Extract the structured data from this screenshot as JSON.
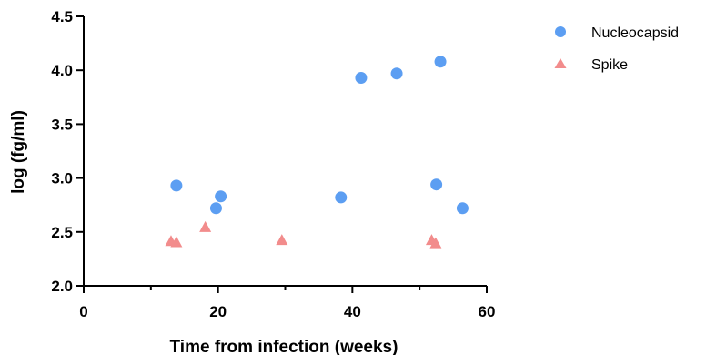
{
  "chart_data": {
    "type": "scatter",
    "title": "",
    "xlabel": "Time from infection (weeks)",
    "ylabel": "log (fg/ml)",
    "xlim": [
      0,
      60
    ],
    "ylim": [
      2.0,
      4.5
    ],
    "x_ticks": [
      0,
      20,
      40,
      60
    ],
    "x_minor_ticks": [
      10,
      30,
      50
    ],
    "y_ticks": [
      2.0,
      2.5,
      3.0,
      3.5,
      4.0,
      4.5
    ],
    "y_tick_labels": [
      "2.0",
      "2.5",
      "3.0",
      "3.5",
      "4.0",
      "4.5"
    ],
    "x_tick_labels": [
      "0",
      "20",
      "40",
      "60"
    ],
    "grid": false,
    "legend_position": "top-right",
    "series": [
      {
        "name": "Nucleocapsid",
        "marker": "circle",
        "color": "#5c9ef2",
        "points": [
          {
            "x": 13.8,
            "y": 2.93
          },
          {
            "x": 19.7,
            "y": 2.72
          },
          {
            "x": 20.4,
            "y": 2.83
          },
          {
            "x": 38.3,
            "y": 2.82
          },
          {
            "x": 41.3,
            "y": 3.93
          },
          {
            "x": 46.6,
            "y": 3.97
          },
          {
            "x": 52.5,
            "y": 2.94
          },
          {
            "x": 53.1,
            "y": 4.08
          },
          {
            "x": 56.4,
            "y": 2.72
          }
        ]
      },
      {
        "name": "Spike",
        "marker": "triangle",
        "color": "#f28c8c",
        "points": [
          {
            "x": 13.0,
            "y": 2.42
          },
          {
            "x": 13.8,
            "y": 2.41
          },
          {
            "x": 18.1,
            "y": 2.55
          },
          {
            "x": 29.5,
            "y": 2.43
          },
          {
            "x": 51.8,
            "y": 2.43
          },
          {
            "x": 52.4,
            "y": 2.4
          }
        ]
      }
    ]
  }
}
